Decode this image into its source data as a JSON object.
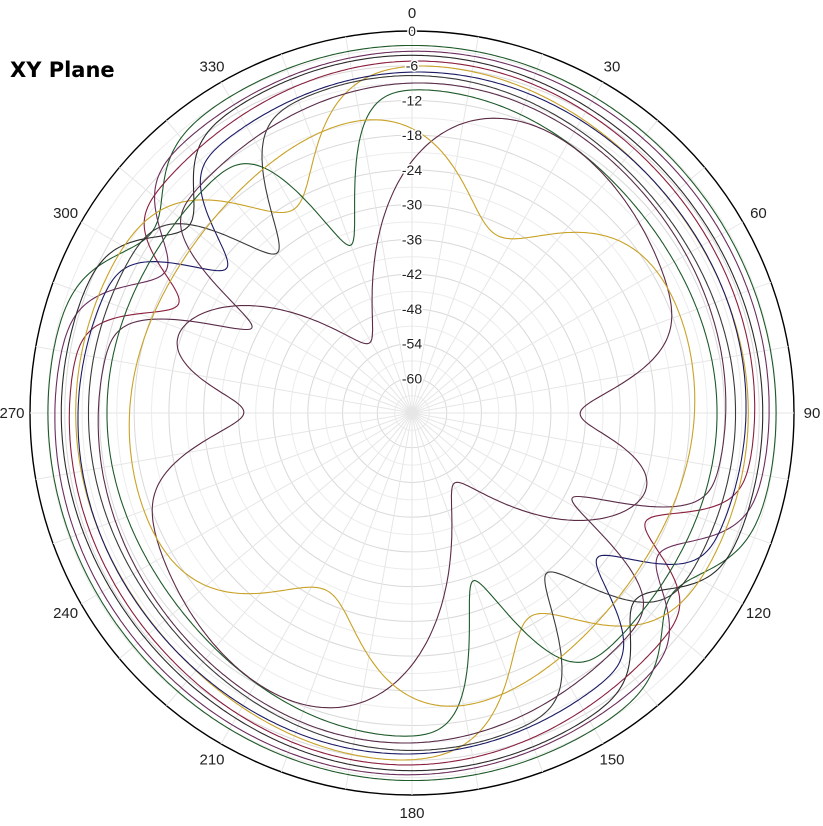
{
  "chart_data": {
    "type": "polar-line",
    "title": "XY Plane",
    "angle_ticks": [
      "0",
      "30",
      "60",
      "90",
      "120",
      "150",
      "180",
      "210",
      "240",
      "270",
      "300",
      "330"
    ],
    "radial_ticks": [
      "0",
      "-6",
      "-12",
      "-18",
      "-24",
      "-30",
      "-36",
      "-42",
      "-48",
      "-54",
      "-60"
    ],
    "radial_range_db": [
      -66,
      0
    ],
    "angle_direction": "clockwise",
    "zero_angle_position": "top",
    "grid": true,
    "legend": "none",
    "series": [
      {
        "color": "#1f5a2a",
        "base": -3.0,
        "cos2": 0.3,
        "sin2": 0.0,
        "cos4": 0.2,
        "nulls": [
          {
            "center": 125,
            "depth": 8,
            "width": 7
          },
          {
            "center": 305,
            "depth": 8,
            "width": 7
          }
        ]
      },
      {
        "color": "#6b2d5c",
        "base": -4.2,
        "cos2": 0.4,
        "sin2": 0.4,
        "cos4": 0.3,
        "nulls": [
          {
            "center": 120,
            "depth": 12,
            "width": 6
          },
          {
            "center": 300,
            "depth": 12,
            "width": 6
          }
        ]
      },
      {
        "color": "#2a2a2a",
        "base": -5.2,
        "cos2": 0.6,
        "sin2": 0.0,
        "cos4": 0.4,
        "nulls": [
          {
            "center": 130,
            "depth": 10,
            "width": 6
          },
          {
            "center": 310,
            "depth": 10,
            "width": 6
          }
        ]
      },
      {
        "color": "#8a1f3d",
        "base": -6.5,
        "cos2": 0.8,
        "sin2": 0.5,
        "cos4": 0.5,
        "nulls": [
          {
            "center": 115,
            "depth": 14,
            "width": 5
          },
          {
            "center": 295,
            "depth": 14,
            "width": 5
          }
        ]
      },
      {
        "color": "#c9a227",
        "base": -7.5,
        "cos2": 1.0,
        "sin2": 0.0,
        "cos4": 0.6,
        "nulls": [
          {
            "center": 150,
            "depth": 18,
            "width": 10
          },
          {
            "center": 330,
            "depth": 18,
            "width": 10
          }
        ]
      },
      {
        "color": "#1b1b66",
        "base": -8.2,
        "cos2": 0.6,
        "sin2": 0.6,
        "cos4": 0.5,
        "nulls": [
          {
            "center": 128,
            "depth": 16,
            "width": 5
          },
          {
            "center": 308,
            "depth": 16,
            "width": 5
          }
        ]
      },
      {
        "color": "#3a3a3a",
        "base": -9.5,
        "cos2": 1.2,
        "sin2": 0.0,
        "cos4": 0.6,
        "nulls": [
          {
            "center": 140,
            "depth": 20,
            "width": 6
          },
          {
            "center": 320,
            "depth": 20,
            "width": 6
          }
        ]
      },
      {
        "color": "#5a2d4a",
        "base": -11.0,
        "cos2": 1.4,
        "sin2": 0.8,
        "cos4": 0.6,
        "nulls": [
          {
            "center": 118,
            "depth": 22,
            "width": 5
          },
          {
            "center": 298,
            "depth": 22,
            "width": 5
          }
        ]
      },
      {
        "color": "#1f5a2a",
        "base": -12.5,
        "cos2": 1.6,
        "sin2": 0.0,
        "cos4": 0.8,
        "nulls": [
          {
            "center": 160,
            "depth": 24,
            "width": 6
          },
          {
            "center": 340,
            "depth": 24,
            "width": 6
          }
        ]
      },
      {
        "color": "#5b2a45",
        "base": -14.0,
        "cos2": 4.5,
        "sin2": 0.0,
        "cos4": 0.0,
        "nulls": [
          {
            "center": 90,
            "depth": 18,
            "width": 8
          },
          {
            "center": 270,
            "depth": 18,
            "width": 8
          },
          {
            "center": 330,
            "depth": 40,
            "width": 20
          },
          {
            "center": 150,
            "depth": 40,
            "width": 20
          }
        ]
      },
      {
        "color": "#c9a227",
        "base": -16.0,
        "cos2": 2.0,
        "sin2": 1.2,
        "cos4": 0.8,
        "nulls": [
          {
            "center": 25,
            "depth": 18,
            "width": 14
          },
          {
            "center": 205,
            "depth": 18,
            "width": 14
          }
        ]
      }
    ]
  }
}
